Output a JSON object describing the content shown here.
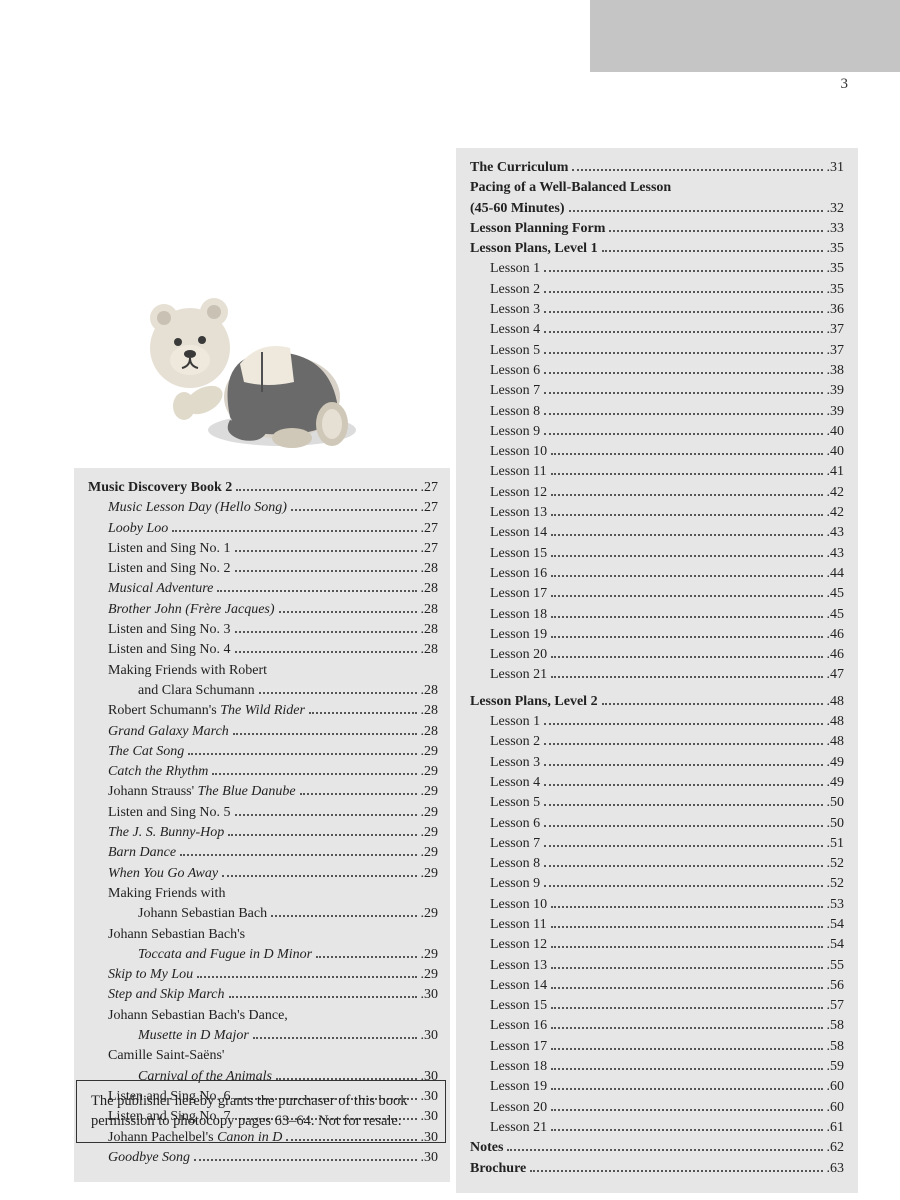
{
  "page_number": "3",
  "colors": {
    "header_gray": "#c5c5c5",
    "panel_gray": "#e6e6e6",
    "text": "#222222",
    "dots": "#555555",
    "bg": "#ffffff"
  },
  "left_column": {
    "heading": {
      "title": "Music Discovery Book 2",
      "page": "27",
      "bold": true
    },
    "entries": [
      {
        "title": "Music Lesson Day (Hello Song)",
        "page": "27",
        "italic": true,
        "indent": 1
      },
      {
        "title": "Looby Loo",
        "page": "27",
        "italic": true,
        "indent": 1
      },
      {
        "title": "Listen and Sing No. 1",
        "page": "27",
        "indent": 1
      },
      {
        "title": "Listen and Sing No. 2",
        "page": "28",
        "indent": 1
      },
      {
        "title": "Musical Adventure",
        "page": "28",
        "italic": true,
        "indent": 1
      },
      {
        "title": "Brother John (Frère Jacques)",
        "page": "28",
        "italic": true,
        "indent": 1
      },
      {
        "title": "Listen and Sing No. 3",
        "page": "28",
        "indent": 1
      },
      {
        "title": "Listen and Sing No. 4",
        "page": "28",
        "indent": 1
      },
      {
        "title": "Making Friends with Robert",
        "indent": 1,
        "continuation": true
      },
      {
        "title": "and Clara Schumann",
        "page": "28",
        "indent": 2
      },
      {
        "title_parts": [
          {
            "t": "Robert Schumann's "
          },
          {
            "t": "The Wild Rider",
            "italic": true
          }
        ],
        "page": "28",
        "indent": 1
      },
      {
        "title": "Grand Galaxy March",
        "page": "28",
        "italic": true,
        "indent": 1
      },
      {
        "title": "The Cat Song",
        "page": "29",
        "italic": true,
        "indent": 1
      },
      {
        "title": "Catch the Rhythm",
        "page": "29",
        "italic": true,
        "indent": 1
      },
      {
        "title_parts": [
          {
            "t": "Johann Strauss' "
          },
          {
            "t": "The Blue Danube",
            "italic": true
          }
        ],
        "page": "29",
        "indent": 1
      },
      {
        "title": "Listen and Sing No. 5",
        "page": "29",
        "indent": 1
      },
      {
        "title": "The J. S. Bunny-Hop",
        "page": "29",
        "italic": true,
        "indent": 1
      },
      {
        "title": "Barn Dance",
        "page": "29",
        "italic": true,
        "indent": 1
      },
      {
        "title": "When You Go Away",
        "page": "29",
        "italic": true,
        "indent": 1
      },
      {
        "title": "Making Friends with",
        "indent": 1,
        "continuation": true
      },
      {
        "title": "Johann Sebastian Bach",
        "page": "29",
        "indent": 2
      },
      {
        "title": "Johann Sebastian Bach's",
        "indent": 1,
        "continuation": true
      },
      {
        "title": "Toccata and Fugue in D Minor",
        "page": "29",
        "italic": true,
        "indent": 2
      },
      {
        "title": "Skip to My Lou",
        "page": "29",
        "italic": true,
        "indent": 1
      },
      {
        "title": "Step and Skip March",
        "page": "30",
        "italic": true,
        "indent": 1
      },
      {
        "title": "Johann Sebastian Bach's Dance,",
        "indent": 1,
        "continuation": true
      },
      {
        "title": "Musette in D Major",
        "page": "30",
        "italic": true,
        "indent": 2
      },
      {
        "title": "Camille Saint-Saëns'",
        "indent": 1,
        "continuation": true
      },
      {
        "title": "Carnival of the Animals",
        "page": "30",
        "italic": true,
        "indent": 2
      },
      {
        "title": "Listen and Sing No. 6",
        "page": "30",
        "indent": 1
      },
      {
        "title": "Listen and Sing No. 7",
        "page": "30",
        "indent": 1
      },
      {
        "title_parts": [
          {
            "t": "Johann Pachelbel's "
          },
          {
            "t": "Canon in D",
            "italic": true
          }
        ],
        "page": "30",
        "indent": 1
      },
      {
        "title": "Goodbye Song",
        "page": "30",
        "italic": true,
        "indent": 1
      }
    ]
  },
  "right_column": {
    "sections": [
      {
        "title": "The Curriculum",
        "page": "31",
        "bold": true
      },
      {
        "title": "Pacing of a Well-Balanced Lesson",
        "bold": true,
        "continuation": true
      },
      {
        "title": "(45-60 Minutes)",
        "page": "32",
        "bold": true
      },
      {
        "title": "Lesson Planning Form",
        "page": "33",
        "bold": true
      },
      {
        "title": "Lesson Plans, Level 1",
        "page": "35",
        "bold": true,
        "lessons": [
          {
            "n": "1",
            "p": "35"
          },
          {
            "n": "2",
            "p": "35"
          },
          {
            "n": "3",
            "p": "36"
          },
          {
            "n": "4",
            "p": "37"
          },
          {
            "n": "5",
            "p": "37"
          },
          {
            "n": "6",
            "p": "38"
          },
          {
            "n": "7",
            "p": "39"
          },
          {
            "n": "8",
            "p": "39"
          },
          {
            "n": "9",
            "p": "40"
          },
          {
            "n": "10",
            "p": "40"
          },
          {
            "n": "11",
            "p": "41"
          },
          {
            "n": "12",
            "p": "42"
          },
          {
            "n": "13",
            "p": "42"
          },
          {
            "n": "14",
            "p": "43"
          },
          {
            "n": "15",
            "p": "43"
          },
          {
            "n": "16",
            "p": "44"
          },
          {
            "n": "17",
            "p": "45"
          },
          {
            "n": "18",
            "p": "45"
          },
          {
            "n": "19",
            "p": "46"
          },
          {
            "n": "20",
            "p": "46"
          },
          {
            "n": "21",
            "p": "47"
          }
        ]
      },
      {
        "title": "Lesson Plans, Level 2",
        "page": "48",
        "bold": true,
        "gap": true,
        "lessons": [
          {
            "n": "1",
            "p": "48"
          },
          {
            "n": "2",
            "p": "48"
          },
          {
            "n": "3",
            "p": "49"
          },
          {
            "n": "4",
            "p": "49"
          },
          {
            "n": "5",
            "p": "50"
          },
          {
            "n": "6",
            "p": "50"
          },
          {
            "n": "7",
            "p": "51"
          },
          {
            "n": "8",
            "p": "52"
          },
          {
            "n": "9",
            "p": "52"
          },
          {
            "n": "10",
            "p": "53"
          },
          {
            "n": "11",
            "p": "54"
          },
          {
            "n": "12",
            "p": "54"
          },
          {
            "n": "13",
            "p": "55"
          },
          {
            "n": "14",
            "p": "56"
          },
          {
            "n": "15",
            "p": "57"
          },
          {
            "n": "16",
            "p": "58"
          },
          {
            "n": "17",
            "p": "58"
          },
          {
            "n": "18",
            "p": "59"
          },
          {
            "n": "19",
            "p": "60"
          },
          {
            "n": "20",
            "p": "60"
          },
          {
            "n": "21",
            "p": "61"
          }
        ]
      },
      {
        "title": "Notes",
        "page": "62",
        "bold": true
      },
      {
        "title": "Brochure",
        "page": "63",
        "bold": true
      }
    ],
    "lesson_prefix": "Lesson "
  },
  "permission_box": "The publisher hereby grants the purchaser of this book permission to photocopy pages 63–64. Not for resale."
}
